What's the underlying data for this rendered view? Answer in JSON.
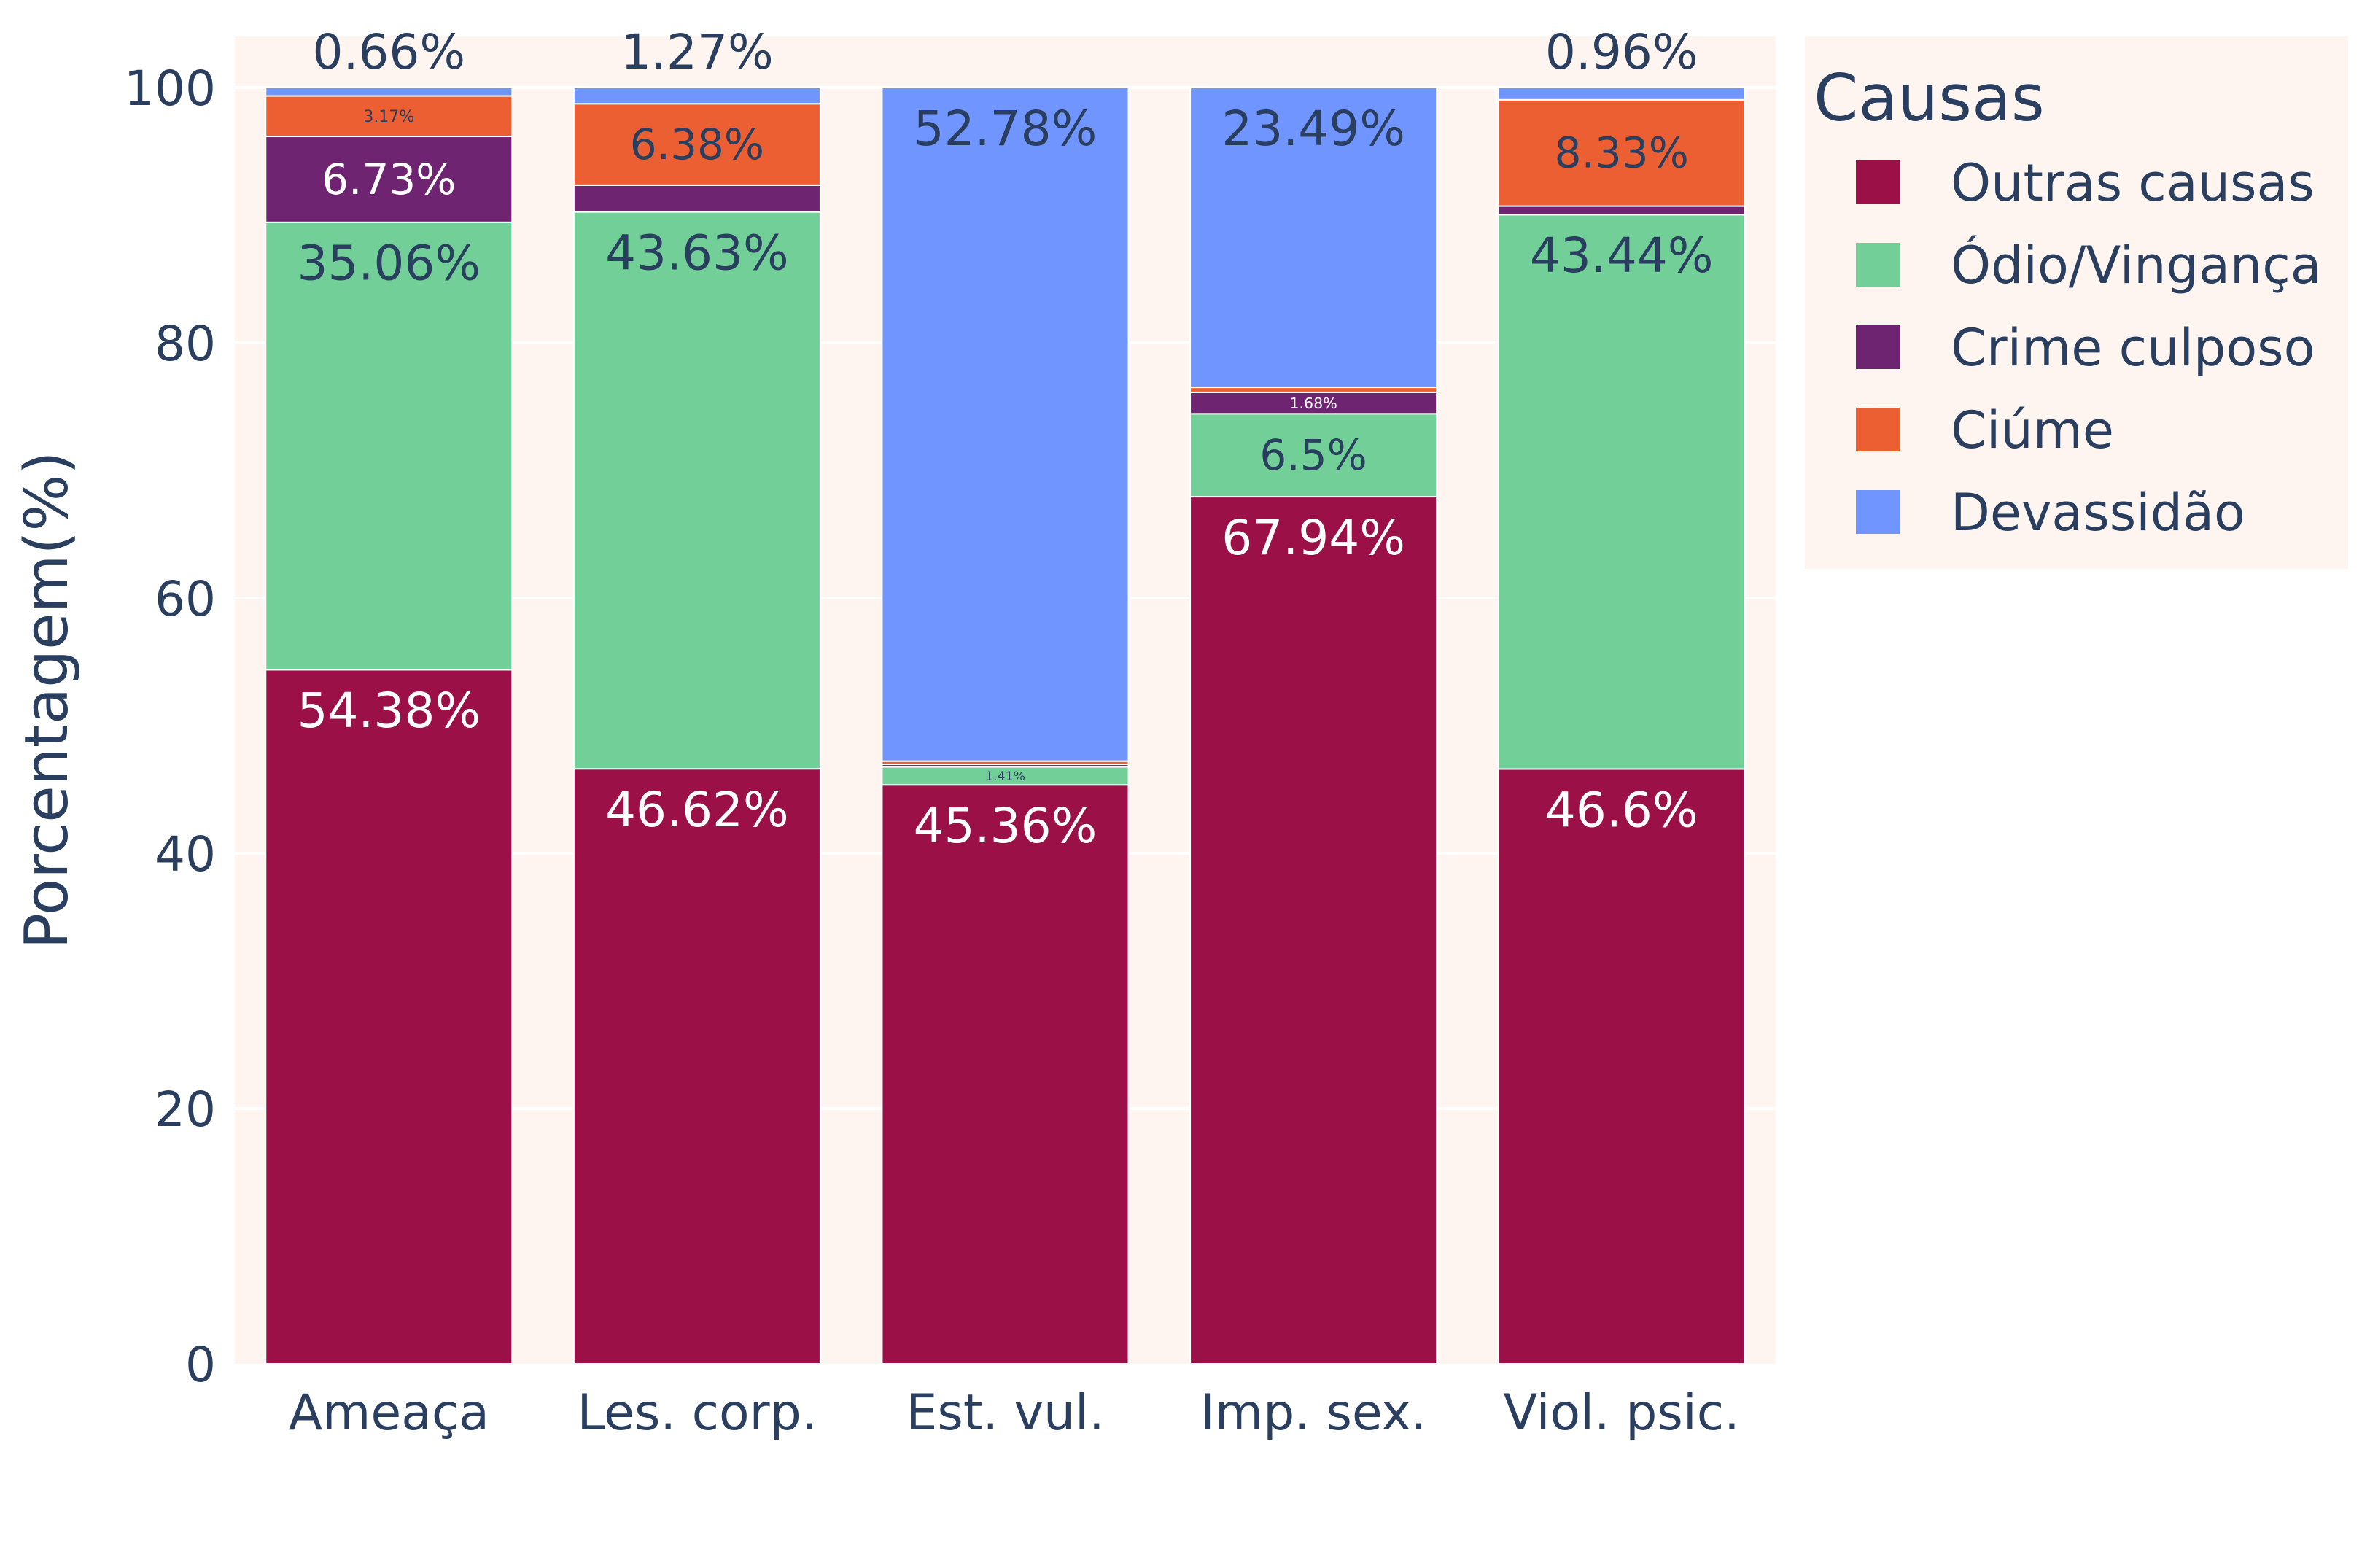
{
  "chart_data": {
    "type": "bar",
    "barmode": "stack",
    "categories": [
      "Ameaça",
      "Les. corp.",
      "Est. vul.",
      "Imp. sex.",
      "Viol. psic."
    ],
    "ylabel": "Porcentagem(%)",
    "ylim": [
      0,
      104
    ],
    "yticks": [
      0,
      20,
      40,
      60,
      80,
      100
    ],
    "legend_title": "Causas",
    "legend_position": "top-right",
    "plot_background": "#fff5f0",
    "grid": true,
    "series": [
      {
        "name": "Outras causas",
        "color": "#9b1046",
        "values": [
          54.38,
          46.62,
          45.36,
          67.94,
          46.6
        ],
        "labels": [
          "54.38%",
          "46.62%",
          "45.36%",
          "67.94%",
          "46.6%"
        ]
      },
      {
        "name": "Ódio/Vingança",
        "color": "#71cf97",
        "values": [
          35.06,
          43.63,
          1.41,
          6.5,
          43.44
        ],
        "labels": [
          "35.06%",
          "43.63%",
          "1.41%",
          "6.5%",
          "43.44%"
        ]
      },
      {
        "name": "Crime culposo",
        "color": "#6e2470",
        "values": [
          6.73,
          2.1,
          0.2,
          1.68,
          0.67
        ],
        "labels": [
          "6.73%",
          "",
          "",
          "1.68%",
          ""
        ]
      },
      {
        "name": "Ciúme",
        "color": "#eb5f32",
        "values": [
          3.17,
          6.38,
          0.25,
          0.39,
          8.33
        ],
        "labels": [
          "3.17%",
          "6.38%",
          "",
          "",
          "8.33%"
        ]
      },
      {
        "name": "Devassidão",
        "color": "#7195ff",
        "values": [
          0.66,
          1.27,
          52.78,
          23.49,
          0.96
        ],
        "labels": [
          "0.66%",
          "1.27%",
          "52.78%",
          "23.49%",
          "0.96%"
        ]
      }
    ]
  }
}
